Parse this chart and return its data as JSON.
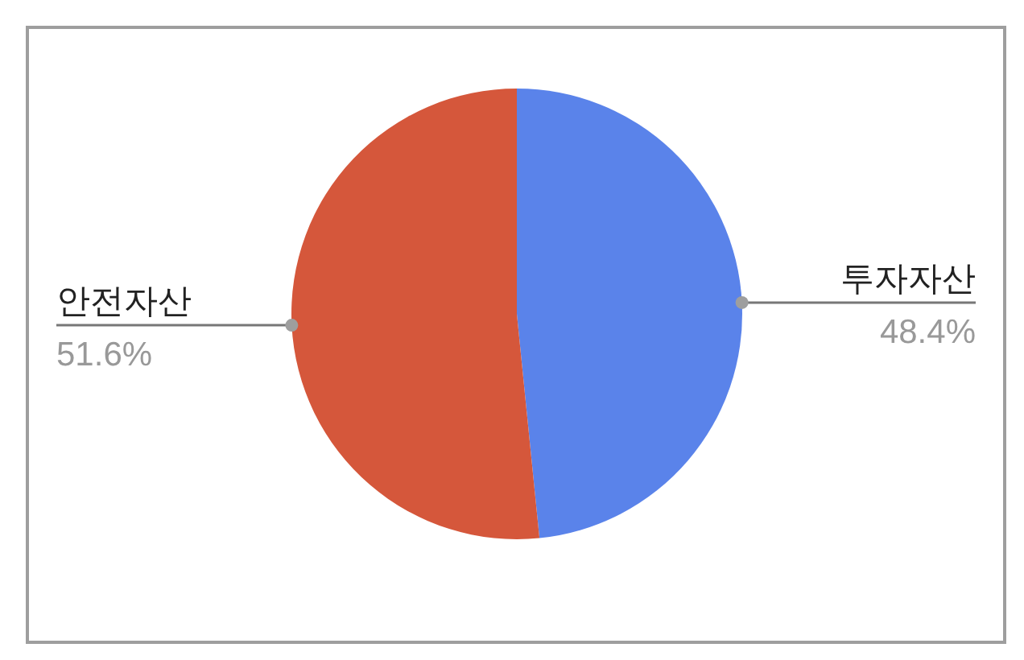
{
  "chart_data": {
    "type": "pie",
    "categories": [
      "투자자산",
      "안전자산"
    ],
    "values": [
      48.4,
      51.6
    ],
    "colors": [
      "#5a83ea",
      "#d5573b"
    ],
    "value_labels": [
      "48.4%",
      "51.6%"
    ]
  }
}
